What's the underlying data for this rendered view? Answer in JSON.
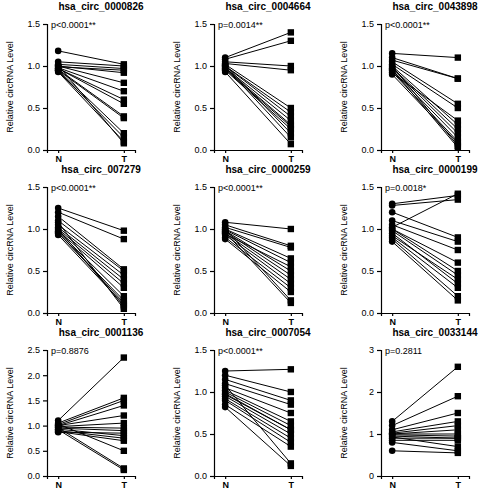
{
  "chart_data": [
    {
      "type": "line",
      "title": "hsa_circ_0000826",
      "annotation": "p<0.0001**",
      "y_label": "Relative circRNA Level",
      "categories": [
        "N",
        "T"
      ],
      "color": "#000000",
      "ylim": [
        0,
        1.5
      ],
      "yticks": [
        {
          "value": 0,
          "label": "0.0"
        },
        {
          "value": 0.5,
          "label": "0.5"
        },
        {
          "value": 1,
          "label": "1.0"
        },
        {
          "value": 1.5,
          "label": "1.5"
        }
      ],
      "series": [
        {
          "values": [
            1.18,
            1.02
          ]
        },
        {
          "values": [
            1.05,
            1.0
          ]
        },
        {
          "values": [
            1.02,
            0.97
          ]
        },
        {
          "values": [
            1.0,
            0.92
          ]
        },
        {
          "values": [
            1.0,
            0.8
          ]
        },
        {
          "values": [
            0.98,
            0.7
          ]
        },
        {
          "values": [
            0.97,
            0.55
          ]
        },
        {
          "values": [
            0.96,
            0.4
          ]
        },
        {
          "values": [
            0.95,
            0.38
          ]
        },
        {
          "values": [
            0.95,
            0.2
          ]
        },
        {
          "values": [
            0.94,
            0.15
          ]
        },
        {
          "values": [
            0.93,
            0.1
          ]
        },
        {
          "values": [
            1.01,
            0.08
          ]
        },
        {
          "values": [
            0.99,
            0.95
          ]
        },
        {
          "values": [
            0.97,
            0.6
          ]
        }
      ]
    },
    {
      "type": "line",
      "title": "hsa_circ_0004664",
      "annotation": "p=0.0014**",
      "y_label": "Relative circRNA Level",
      "categories": [
        "N",
        "T"
      ],
      "color": "#000000",
      "ylim": [
        0,
        1.5
      ],
      "yticks": [
        {
          "value": 0,
          "label": "0.0"
        },
        {
          "value": 0.5,
          "label": "0.5"
        },
        {
          "value": 1,
          "label": "1.0"
        },
        {
          "value": 1.5,
          "label": "1.5"
        }
      ],
      "series": [
        {
          "values": [
            1.1,
            1.4
          ]
        },
        {
          "values": [
            1.08,
            1.3
          ]
        },
        {
          "values": [
            1.05,
            1.0
          ]
        },
        {
          "values": [
            1.03,
            0.95
          ]
        },
        {
          "values": [
            1.02,
            0.5
          ]
        },
        {
          "values": [
            1.0,
            0.45
          ]
        },
        {
          "values": [
            1.0,
            0.4
          ]
        },
        {
          "values": [
            0.98,
            0.35
          ]
        },
        {
          "values": [
            0.97,
            0.3
          ]
        },
        {
          "values": [
            0.96,
            0.28
          ]
        },
        {
          "values": [
            0.95,
            0.25
          ]
        },
        {
          "values": [
            1.01,
            0.2
          ]
        },
        {
          "values": [
            0.99,
            0.15
          ]
        },
        {
          "values": [
            0.93,
            0.07
          ]
        }
      ]
    },
    {
      "type": "line",
      "title": "hsa_circ_0043898",
      "annotation": "p<0.0001**",
      "y_label": "Relative circRNA Level",
      "categories": [
        "N",
        "T"
      ],
      "color": "#000000",
      "ylim": [
        0,
        1.5
      ],
      "yticks": [
        {
          "value": 0,
          "label": "0.0"
        },
        {
          "value": 0.5,
          "label": "0.5"
        },
        {
          "value": 1,
          "label": "1.0"
        },
        {
          "value": 1.5,
          "label": "1.5"
        }
      ],
      "series": [
        {
          "values": [
            1.15,
            1.1
          ]
        },
        {
          "values": [
            1.1,
            0.85
          ]
        },
        {
          "values": [
            1.07,
            0.85
          ]
        },
        {
          "values": [
            1.05,
            0.55
          ]
        },
        {
          "values": [
            1.02,
            0.5
          ]
        },
        {
          "values": [
            1.0,
            0.3
          ]
        },
        {
          "values": [
            0.98,
            0.25
          ]
        },
        {
          "values": [
            0.97,
            0.2
          ]
        },
        {
          "values": [
            0.95,
            0.15
          ]
        },
        {
          "values": [
            0.93,
            0.1
          ]
        },
        {
          "values": [
            0.9,
            0.08
          ]
        },
        {
          "values": [
            1.0,
            0.05
          ]
        },
        {
          "values": [
            0.96,
            0.03
          ]
        },
        {
          "values": [
            0.92,
            0.35
          ]
        }
      ]
    },
    {
      "type": "line",
      "title": "hsa_circ_007279",
      "annotation": "p<0.0001**",
      "y_label": "Relative circRNA Level",
      "categories": [
        "N",
        "T"
      ],
      "color": "#000000",
      "ylim": [
        0,
        1.5
      ],
      "yticks": [
        {
          "value": 0,
          "label": "0.0"
        },
        {
          "value": 0.5,
          "label": "0.5"
        },
        {
          "value": 1,
          "label": "1.0"
        },
        {
          "value": 1.5,
          "label": "1.5"
        }
      ],
      "series": [
        {
          "values": [
            1.25,
            0.98
          ]
        },
        {
          "values": [
            1.2,
            0.88
          ]
        },
        {
          "values": [
            1.15,
            0.52
          ]
        },
        {
          "values": [
            1.1,
            0.5
          ]
        },
        {
          "values": [
            1.05,
            0.45
          ]
        },
        {
          "values": [
            1.02,
            0.4
          ]
        },
        {
          "values": [
            1.0,
            0.35
          ]
        },
        {
          "values": [
            0.98,
            0.3
          ]
        },
        {
          "values": [
            0.97,
            0.2
          ]
        },
        {
          "values": [
            0.95,
            0.15
          ]
        },
        {
          "values": [
            0.93,
            0.1
          ]
        },
        {
          "values": [
            1.0,
            0.08
          ]
        },
        {
          "values": [
            1.08,
            0.05
          ]
        },
        {
          "values": [
            0.96,
            0.12
          ]
        }
      ]
    },
    {
      "type": "line",
      "title": "hsa_circ_0000259",
      "annotation": "p<0.0001**",
      "y_label": "Relative circRNA Level",
      "categories": [
        "N",
        "T"
      ],
      "color": "#000000",
      "ylim": [
        0,
        1.5
      ],
      "yticks": [
        {
          "value": 0,
          "label": "0.0"
        },
        {
          "value": 0.5,
          "label": "0.5"
        },
        {
          "value": 1,
          "label": "1.0"
        },
        {
          "value": 1.5,
          "label": "1.5"
        }
      ],
      "series": [
        {
          "values": [
            1.08,
            1.0
          ]
        },
        {
          "values": [
            1.05,
            0.8
          ]
        },
        {
          "values": [
            1.02,
            0.78
          ]
        },
        {
          "values": [
            1.0,
            0.65
          ]
        },
        {
          "values": [
            0.99,
            0.6
          ]
        },
        {
          "values": [
            0.98,
            0.5
          ]
        },
        {
          "values": [
            0.97,
            0.45
          ]
        },
        {
          "values": [
            0.95,
            0.4
          ]
        },
        {
          "values": [
            0.93,
            0.35
          ]
        },
        {
          "values": [
            0.9,
            0.3
          ]
        },
        {
          "values": [
            0.88,
            0.25
          ]
        },
        {
          "values": [
            1.0,
            0.15
          ]
        },
        {
          "values": [
            0.96,
            0.12
          ]
        },
        {
          "values": [
            0.94,
            0.55
          ]
        }
      ]
    },
    {
      "type": "line",
      "title": "hsa_circ_0000199",
      "annotation": "p=0.0018*",
      "y_label": "Relative circRNA Level",
      "categories": [
        "N",
        "T"
      ],
      "color": "#000000",
      "ylim": [
        0,
        1.5
      ],
      "yticks": [
        {
          "value": 0,
          "label": "0.0"
        },
        {
          "value": 0.5,
          "label": "0.5"
        },
        {
          "value": 1,
          "label": "1.0"
        },
        {
          "value": 1.5,
          "label": "1.5"
        }
      ],
      "series": [
        {
          "values": [
            1.3,
            1.4
          ]
        },
        {
          "values": [
            1.28,
            1.35
          ]
        },
        {
          "values": [
            1.2,
            0.9
          ]
        },
        {
          "values": [
            1.1,
            0.85
          ]
        },
        {
          "values": [
            1.05,
            0.75
          ]
        },
        {
          "values": [
            1.0,
            0.6
          ]
        },
        {
          "values": [
            1.0,
            0.5
          ]
        },
        {
          "values": [
            0.98,
            0.45
          ]
        },
        {
          "values": [
            0.95,
            0.35
          ]
        },
        {
          "values": [
            0.9,
            0.3
          ]
        },
        {
          "values": [
            0.88,
            0.2
          ]
        },
        {
          "values": [
            0.85,
            0.15
          ]
        },
        {
          "values": [
            1.02,
            1.42
          ]
        },
        {
          "values": [
            0.92,
            0.4
          ]
        }
      ]
    },
    {
      "type": "line",
      "title": "hsa_circ_0001136",
      "annotation": "p=0.8876",
      "y_label": "Relative circRNA Level",
      "categories": [
        "N",
        "T"
      ],
      "color": "#000000",
      "ylim": [
        0,
        2.5
      ],
      "yticks": [
        {
          "value": 0,
          "label": "0.0"
        },
        {
          "value": 0.5,
          "label": "0.5"
        },
        {
          "value": 1,
          "label": "1.0"
        },
        {
          "value": 1.5,
          "label": "1.5"
        },
        {
          "value": 2,
          "label": "2.0"
        },
        {
          "value": 2.5,
          "label": "2.5"
        }
      ],
      "series": [
        {
          "values": [
            1.1,
            2.35
          ]
        },
        {
          "values": [
            1.05,
            1.55
          ]
        },
        {
          "values": [
            1.02,
            1.5
          ]
        },
        {
          "values": [
            1.0,
            1.4
          ]
        },
        {
          "values": [
            1.0,
            1.2
          ]
        },
        {
          "values": [
            0.98,
            1.05
          ]
        },
        {
          "values": [
            0.97,
            0.95
          ]
        },
        {
          "values": [
            0.95,
            0.9
          ]
        },
        {
          "values": [
            0.93,
            0.8
          ]
        },
        {
          "values": [
            0.9,
            0.75
          ]
        },
        {
          "values": [
            0.88,
            0.7
          ]
        },
        {
          "values": [
            1.03,
            0.5
          ]
        },
        {
          "values": [
            0.96,
            0.15
          ]
        },
        {
          "values": [
            0.92,
            0.12
          ]
        },
        {
          "values": [
            0.87,
            0.85
          ]
        }
      ]
    },
    {
      "type": "line",
      "title": "hsa_circ_0007054",
      "annotation": "p<0.0001**",
      "y_label": "Relative circRNA Level",
      "categories": [
        "N",
        "T"
      ],
      "color": "#000000",
      "ylim": [
        0,
        1.5
      ],
      "yticks": [
        {
          "value": 0,
          "label": "0.0"
        },
        {
          "value": 0.5,
          "label": "0.5"
        },
        {
          "value": 1,
          "label": "1.0"
        },
        {
          "value": 1.5,
          "label": "1.5"
        }
      ],
      "series": [
        {
          "values": [
            1.25,
            1.27
          ]
        },
        {
          "values": [
            1.2,
            1.0
          ]
        },
        {
          "values": [
            1.15,
            0.9
          ]
        },
        {
          "values": [
            1.1,
            0.85
          ]
        },
        {
          "values": [
            1.05,
            0.75
          ]
        },
        {
          "values": [
            1.02,
            0.65
          ]
        },
        {
          "values": [
            1.0,
            0.6
          ]
        },
        {
          "values": [
            0.98,
            0.55
          ]
        },
        {
          "values": [
            0.95,
            0.5
          ]
        },
        {
          "values": [
            0.92,
            0.45
          ]
        },
        {
          "values": [
            0.9,
            0.4
          ]
        },
        {
          "values": [
            0.85,
            0.35
          ]
        },
        {
          "values": [
            0.82,
            0.12
          ]
        },
        {
          "values": [
            1.08,
            0.15
          ]
        },
        {
          "values": [
            0.97,
            0.55
          ]
        }
      ]
    },
    {
      "type": "line",
      "title": "hsa_circ_0033144",
      "annotation": "p=0.2811",
      "y_label": "Relative circRNA Level",
      "categories": [
        "N",
        "T"
      ],
      "color": "#000000",
      "ylim": [
        0,
        3
      ],
      "yticks": [
        0,
        1,
        2,
        3
      ],
      "series": [
        {
          "values": [
            1.3,
            2.6
          ]
        },
        {
          "values": [
            1.2,
            1.9
          ]
        },
        {
          "values": [
            1.1,
            1.5
          ]
        },
        {
          "values": [
            1.05,
            1.3
          ]
        },
        {
          "values": [
            1.0,
            1.1
          ]
        },
        {
          "values": [
            1.0,
            1.0
          ]
        },
        {
          "values": [
            0.98,
            0.95
          ]
        },
        {
          "values": [
            0.95,
            0.9
          ]
        },
        {
          "values": [
            0.9,
            0.9
          ]
        },
        {
          "values": [
            0.85,
            0.85
          ]
        },
        {
          "values": [
            0.8,
            0.6
          ]
        },
        {
          "values": [
            0.6,
            0.55
          ]
        },
        {
          "values": [
            1.02,
            1.2
          ]
        },
        {
          "values": [
            0.93,
            0.7
          ]
        }
      ]
    }
  ]
}
